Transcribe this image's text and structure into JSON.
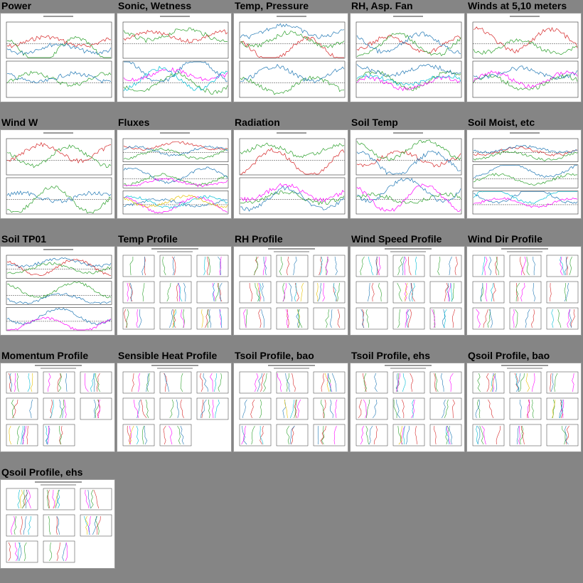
{
  "tiles": [
    {
      "title": "Power",
      "kind": "ts2"
    },
    {
      "title": "Sonic, Wetness",
      "kind": "ts2"
    },
    {
      "title": "Temp, Pressure",
      "kind": "ts2"
    },
    {
      "title": "RH, Asp. Fan",
      "kind": "ts2"
    },
    {
      "title": "Winds at 5,10 meters",
      "kind": "ts2"
    },
    {
      "title": "Wind W",
      "kind": "ts2"
    },
    {
      "title": "Fluxes",
      "kind": "ts3"
    },
    {
      "title": "Radiation",
      "kind": "ts2"
    },
    {
      "title": "Soil Temp",
      "kind": "ts2"
    },
    {
      "title": "Soil Moist, etc",
      "kind": "ts3"
    },
    {
      "title": "Soil TP01",
      "kind": "ts3"
    },
    {
      "title": "Temp Profile",
      "kind": "prof"
    },
    {
      "title": "RH Profile",
      "kind": "prof"
    },
    {
      "title": "Wind Speed Profile",
      "kind": "prof"
    },
    {
      "title": "Wind Dir Profile",
      "kind": "prof"
    },
    {
      "title": "Momentum Profile",
      "kind": "prof8"
    },
    {
      "title": "Sensible Heat Profile",
      "kind": "prof8"
    },
    {
      "title": "Tsoil Profile, bao",
      "kind": "prof"
    },
    {
      "title": "Tsoil Profile, ehs",
      "kind": "prof"
    },
    {
      "title": "Qsoil Profile, bao",
      "kind": "prof"
    },
    {
      "title": "Qsoil Profile, ehs",
      "kind": "prof8"
    }
  ]
}
